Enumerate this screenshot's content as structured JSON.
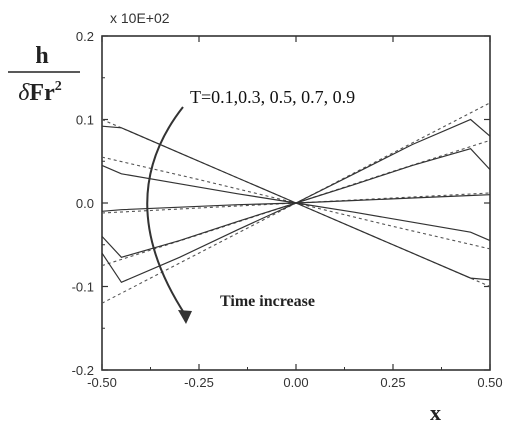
{
  "chart_data": {
    "type": "line",
    "title": "",
    "axis_multiplier": "x 10E+02",
    "xlabel": "x",
    "ylabel": {
      "numerator": "h",
      "denominator_symbol": "δ",
      "denominator_text": "Fr",
      "denominator_exp": "2"
    },
    "xlim": [
      -0.5,
      0.5
    ],
    "ylim": [
      -0.2,
      0.2
    ],
    "xticks": [
      "-0.50",
      "-0.25",
      "0.00",
      "0.25",
      "0.50"
    ],
    "yticks": [
      "0.2",
      "0.1",
      "0.0",
      "-0.1",
      "-0.2"
    ],
    "grid": false,
    "annotations": {
      "times": "T=0.1,0.3, 0.5, 0.7, 0.9",
      "trend": "Time increase"
    },
    "series_groups": {
      "solid": [
        {
          "x": [
            -0.5,
            -0.45,
            -0.3,
            -0.15,
            0.0,
            0.15,
            0.3,
            0.45,
            0.5
          ],
          "y": [
            0.092,
            0.09,
            0.06,
            0.03,
            0.0,
            -0.03,
            -0.06,
            -0.09,
            -0.092
          ]
        },
        {
          "x": [
            -0.5,
            -0.45,
            -0.3,
            -0.15,
            0.0,
            0.15,
            0.3,
            0.45,
            0.5
          ],
          "y": [
            0.045,
            0.035,
            0.023,
            0.011,
            0.0,
            -0.011,
            -0.023,
            -0.035,
            -0.045
          ]
        },
        {
          "x": [
            -0.5,
            -0.45,
            -0.3,
            -0.15,
            0.0,
            0.15,
            0.3,
            0.45,
            0.5
          ],
          "y": [
            -0.01,
            -0.008,
            -0.005,
            -0.002,
            0.0,
            0.003,
            0.006,
            0.009,
            0.01
          ]
        },
        {
          "x": [
            -0.5,
            -0.45,
            -0.3,
            -0.15,
            0.0,
            0.15,
            0.3,
            0.45,
            0.5
          ],
          "y": [
            -0.04,
            -0.065,
            -0.045,
            -0.022,
            0.0,
            0.022,
            0.045,
            0.065,
            0.04
          ]
        },
        {
          "x": [
            -0.5,
            -0.45,
            -0.3,
            -0.15,
            0.0,
            0.15,
            0.3,
            0.45,
            0.5
          ],
          "y": [
            -0.06,
            -0.095,
            -0.065,
            -0.032,
            0.0,
            0.035,
            0.07,
            0.1,
            0.08
          ]
        }
      ],
      "dashed": [
        {
          "x": [
            -0.5,
            -0.25,
            0.0,
            0.25,
            0.5
          ],
          "y": [
            0.1,
            0.05,
            0.0,
            -0.05,
            -0.1
          ]
        },
        {
          "x": [
            -0.5,
            -0.25,
            0.0,
            0.25,
            0.5
          ],
          "y": [
            0.055,
            0.028,
            0.0,
            -0.028,
            -0.055
          ]
        },
        {
          "x": [
            -0.5,
            -0.25,
            0.0,
            0.25,
            0.5
          ],
          "y": [
            -0.012,
            -0.006,
            0.0,
            0.006,
            0.012
          ]
        },
        {
          "x": [
            -0.5,
            -0.25,
            0.0,
            0.25,
            0.5
          ],
          "y": [
            -0.075,
            -0.038,
            0.0,
            0.038,
            0.075
          ]
        },
        {
          "x": [
            -0.5,
            -0.25,
            0.0,
            0.25,
            0.5
          ],
          "y": [
            -0.12,
            -0.06,
            0.0,
            0.06,
            0.12
          ]
        }
      ]
    }
  }
}
